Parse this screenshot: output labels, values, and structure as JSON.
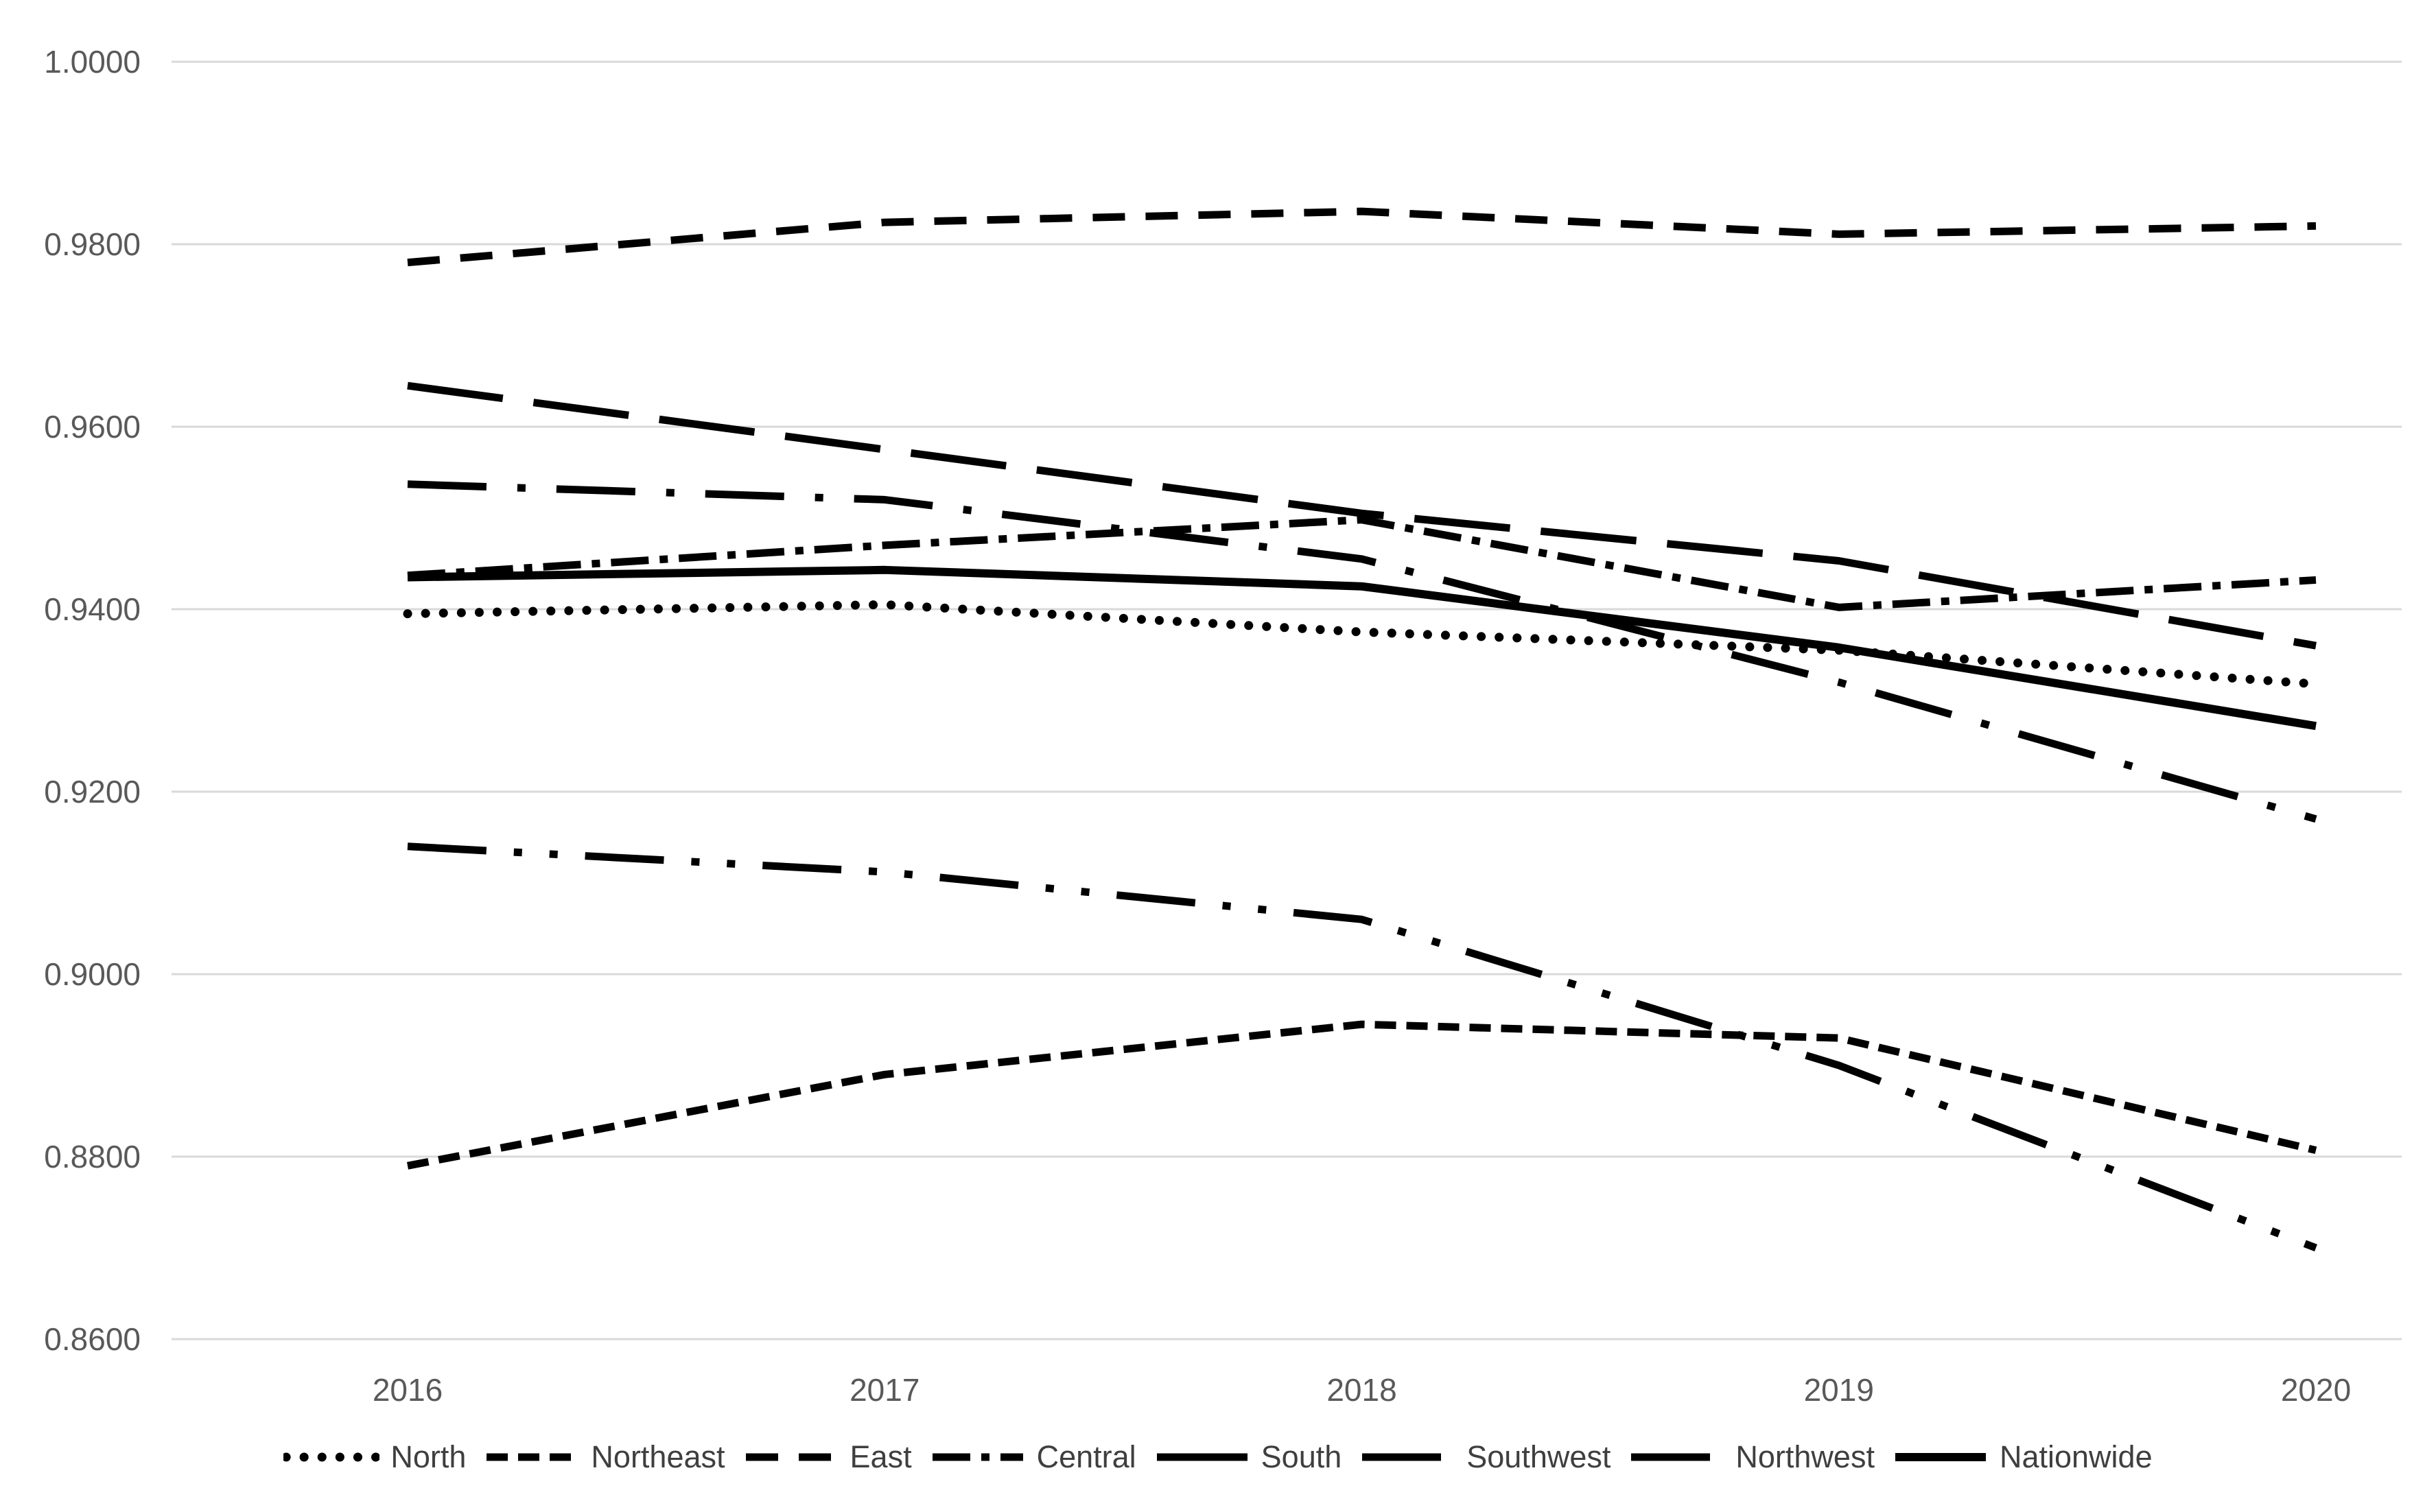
{
  "chart_data": {
    "type": "line",
    "title": "",
    "xlabel": "",
    "ylabel": "",
    "categories": [
      "2016",
      "2017",
      "2018",
      "2019",
      "2020"
    ],
    "y_axis": {
      "min": 0.86,
      "max": 1.0,
      "tick_step": 0.02,
      "tick_labels": [
        "1.0000",
        "0.9800",
        "0.9600",
        "0.9400",
        "0.9200",
        "0.9000",
        "0.8800",
        "0.8600"
      ]
    },
    "grid": true,
    "legend_position": "bottom",
    "series": [
      {
        "name": "North",
        "dash": "dot",
        "values": [
          0.9395,
          0.9405,
          0.9375,
          0.9355,
          0.9318
        ]
      },
      {
        "name": "Northeast",
        "dash": "short-dash",
        "values": [
          0.879,
          0.889,
          0.8945,
          0.893,
          0.8807
        ]
      },
      {
        "name": "East",
        "dash": "dash",
        "values": [
          0.978,
          0.9824,
          0.9836,
          0.9811,
          0.982
        ]
      },
      {
        "name": "Central",
        "dash": "dash-dot",
        "values": [
          0.9437,
          0.947,
          0.9498,
          0.9402,
          0.9432
        ]
      },
      {
        "name": "South",
        "dash": "long-dash",
        "values": [
          0.9645,
          0.9575,
          0.9505,
          0.9453,
          0.936
        ]
      },
      {
        "name": "Southwest",
        "dash": "long-dash-dot",
        "values": [
          0.9537,
          0.952,
          0.9455,
          0.932,
          0.917
        ]
      },
      {
        "name": "Northwest",
        "dash": "long-dash-dot-dot",
        "values": [
          0.914,
          0.9112,
          0.906,
          0.89,
          0.87
        ]
      },
      {
        "name": "Nationwide",
        "dash": "solid",
        "values": [
          0.9435,
          0.9443,
          0.9425,
          0.9358,
          0.9272
        ]
      }
    ],
    "colors": {
      "line": "#000000",
      "grid": "#d9d9d9",
      "axis_label": "#595959",
      "legend_label": "#3f3f3f",
      "background": "#ffffff"
    }
  }
}
